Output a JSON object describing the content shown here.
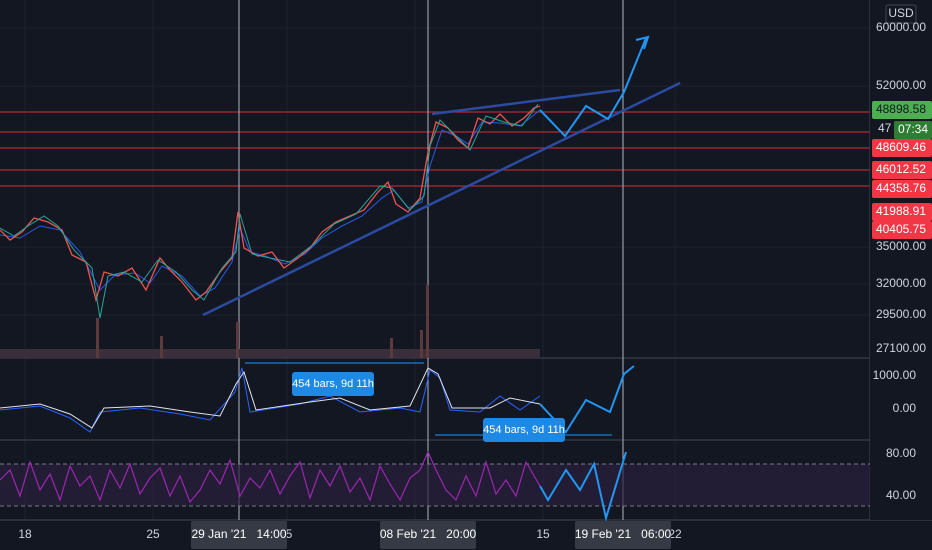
{
  "price_scale": {
    "currency": "USD",
    "labels": [
      "60000.00",
      "52000.00",
      "35000.00",
      "32000.00",
      "29500.00",
      "27100.00"
    ]
  },
  "last_price": {
    "label": "48898.58",
    "partial": "47",
    "countdown": "07:34"
  },
  "levels": [
    "48609.46",
    "46012.52",
    "44358.76",
    "41988.91",
    "40405.75"
  ],
  "oscillator_scale": [
    "1000.00",
    "0.00"
  ],
  "rsi_scale": [
    "80.00",
    "40.00"
  ],
  "time_axis": [
    "18",
    "25",
    "5",
    "15",
    "22"
  ],
  "time_cursors": [
    "29 Jan '21   14:00",
    "08 Feb '21   20:00",
    "19 Feb '21   06:00"
  ],
  "measures": [
    "454 bars, 9d 11h",
    "454 bars, 9d 11h"
  ]
}
